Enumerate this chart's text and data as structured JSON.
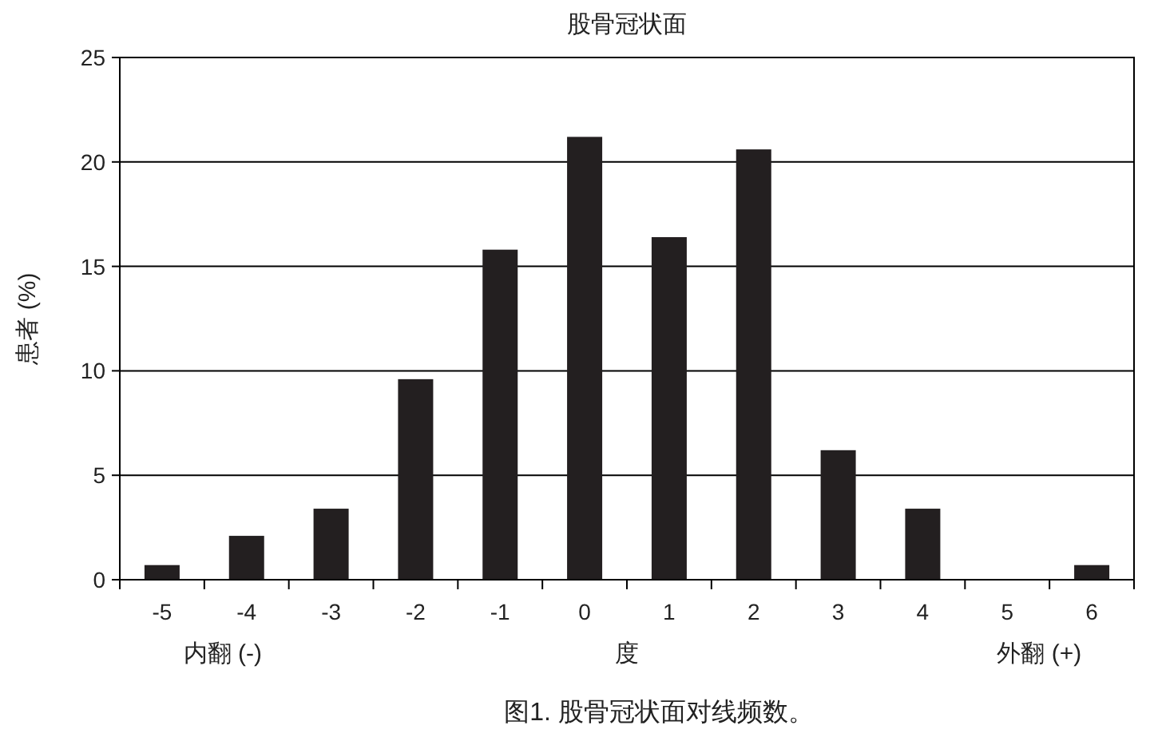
{
  "chart_data": {
    "type": "bar",
    "title": "股骨冠状面",
    "xlabel": "度",
    "ylabel": "患者 (%)",
    "categories": [
      "-5",
      "-4",
      "-3",
      "-2",
      "-1",
      "0",
      "1",
      "2",
      "3",
      "4",
      "5",
      "6"
    ],
    "values": [
      0.7,
      2.1,
      3.4,
      9.6,
      15.8,
      21.2,
      16.4,
      20.6,
      6.2,
      3.4,
      0,
      0.7
    ],
    "color": "#231f20",
    "ylim": [
      0,
      25
    ],
    "yticks": [
      0,
      5,
      10,
      15,
      20,
      25
    ],
    "grid": "y",
    "annotations": [
      "内翻 (-)",
      "外翻 (+)",
      "图1. 股骨冠状面对线频数。"
    ]
  }
}
